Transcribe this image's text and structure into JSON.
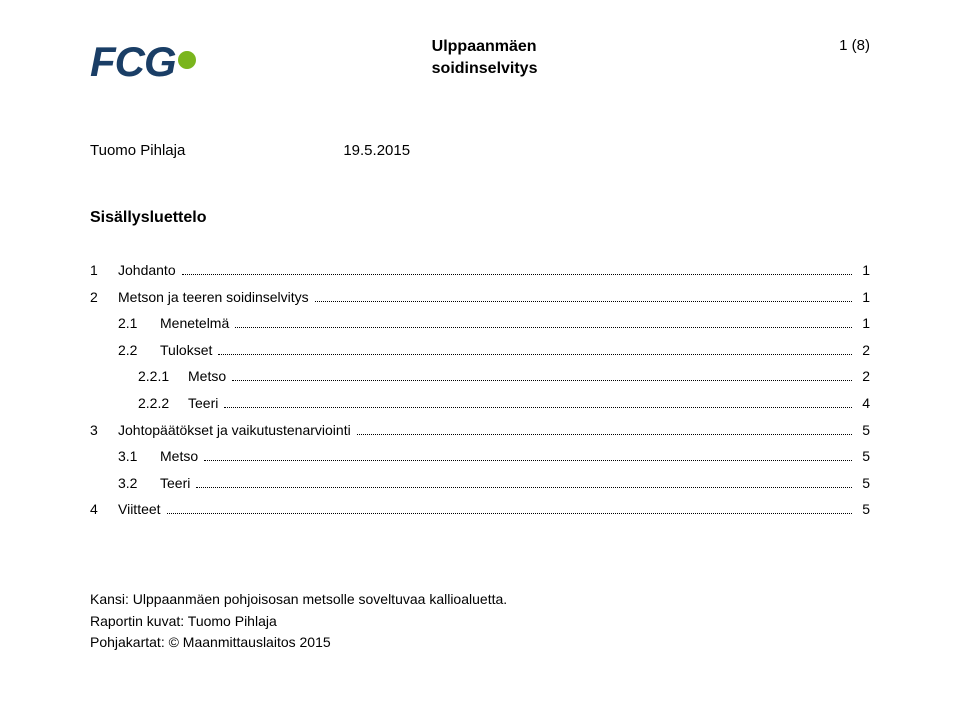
{
  "logo": {
    "text": "FCG"
  },
  "header": {
    "title_line1": "Ulppaanmäen",
    "title_line2": "soidinselvitys",
    "page_label": "1 (8)"
  },
  "meta": {
    "author": "Tuomo Pihlaja",
    "date": "19.5.2015"
  },
  "toc_heading": "Sisällysluettelo",
  "toc": [
    {
      "level": 1,
      "num": "1",
      "label": "Johdanto",
      "page": "1"
    },
    {
      "level": 1,
      "num": "2",
      "label": "Metson ja teeren soidinselvitys",
      "page": "1"
    },
    {
      "level": 2,
      "num": "2.1",
      "label": "Menetelmä",
      "page": "1"
    },
    {
      "level": 2,
      "num": "2.2",
      "label": "Tulokset",
      "page": "2"
    },
    {
      "level": 3,
      "num": "2.2.1",
      "label": "Metso",
      "page": "2"
    },
    {
      "level": 3,
      "num": "2.2.2",
      "label": "Teeri",
      "page": "4"
    },
    {
      "level": 1,
      "num": "3",
      "label": "Johtopäätökset ja vaikutustenarviointi",
      "page": "5"
    },
    {
      "level": 2,
      "num": "3.1",
      "label": "Metso",
      "page": "5"
    },
    {
      "level": 2,
      "num": "3.2",
      "label": "Teeri",
      "page": "5"
    },
    {
      "level": 1,
      "num": "4",
      "label": "Viitteet",
      "page": "5"
    }
  ],
  "footer": {
    "line1": "Kansi: Ulppaanmäen pohjoisosan metsolle soveltuvaa kallioaluetta.",
    "line2": "Raportin kuvat: Tuomo Pihlaja",
    "line3": "Pohjakartat: © Maanmittauslaitos 2015"
  }
}
